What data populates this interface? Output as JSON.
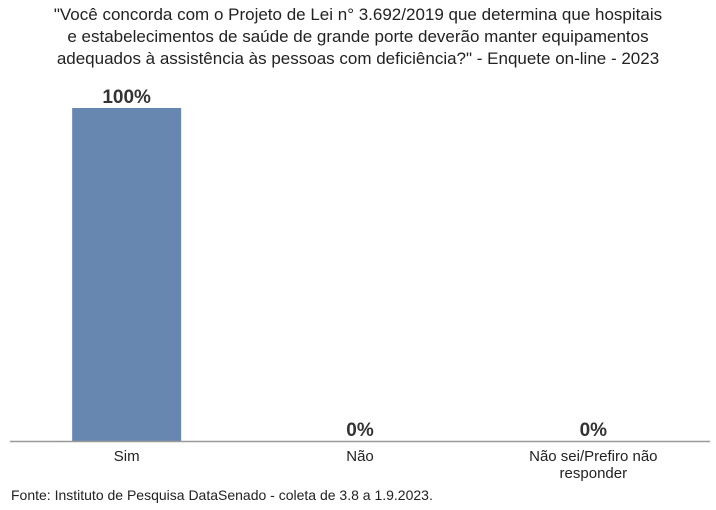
{
  "chart_data": {
    "type": "bar",
    "title_lines": [
      "\"Você concorda com o Projeto de Lei n° 3.692/2019 que determina que hospitais",
      "e estabelecimentos de saúde de grande porte deverão manter equipamentos",
      "adequados à assistência às pessoas com deficiência?\" - Enquete on-line - 2023"
    ],
    "categories": [
      [
        "Sim"
      ],
      [
        "Não"
      ],
      [
        "Não sei/Prefiro não",
        "responder"
      ]
    ],
    "values": [
      100,
      0,
      0
    ],
    "value_labels": [
      "100%",
      "0%",
      "0%"
    ],
    "ylim": [
      0,
      100
    ],
    "grid": false,
    "colors": {
      "bar": "#6786b0",
      "axis": "#999999",
      "text": "#222222",
      "label": "#333333"
    }
  },
  "source": "Fonte: Instituto de Pesquisa DataSenado - coleta de 3.8 a 1.9.2023."
}
